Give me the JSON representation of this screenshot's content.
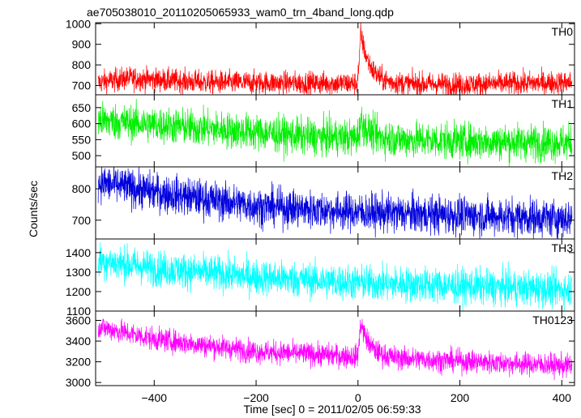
{
  "chart_data": {
    "type": "line",
    "title": "ae705038010_20110205065933_wam0_trn_4band_long.qdp",
    "xlabel": "Time [sec] 0 = 2011/02/05 06:59:33",
    "ylabel": "Counts/sec",
    "xlim": [
      -515,
      425
    ],
    "xticks": [
      -400,
      -200,
      0,
      200,
      400
    ],
    "panels": [
      {
        "name": "TH0",
        "color": "#ff0000",
        "ylim": [
          655,
          1005
        ],
        "yticks": [
          700,
          800,
          900,
          1000
        ],
        "baseline": [
          [
            -510,
            715
          ],
          [
            -450,
            735
          ],
          [
            -300,
            715
          ],
          [
            0,
            710
          ],
          [
            200,
            705
          ],
          [
            420,
            715
          ]
        ],
        "noise": 28,
        "peak": {
          "t": 5,
          "height": 250,
          "width": 18
        }
      },
      {
        "name": "TH1",
        "color": "#00ee00",
        "ylim": [
          465,
          690
        ],
        "yticks": [
          500,
          550,
          600,
          650
        ],
        "baseline": [
          [
            -510,
            610
          ],
          [
            -300,
            585
          ],
          [
            -100,
            560
          ],
          [
            200,
            545
          ],
          [
            420,
            540
          ]
        ],
        "noise": 28,
        "peak": {
          "t": 5,
          "height": 55,
          "width": 18
        }
      },
      {
        "name": "TH2",
        "color": "#0000dd",
        "ylim": [
          640,
          870
        ],
        "yticks": [
          700,
          800
        ],
        "baseline": [
          [
            -510,
            820
          ],
          [
            -400,
            790
          ],
          [
            -200,
            745
          ],
          [
            0,
            725
          ],
          [
            420,
            705
          ]
        ],
        "noise": 30,
        "peak": null
      },
      {
        "name": "TH3",
        "color": "#00ffff",
        "ylim": [
          1100,
          1470
        ],
        "yticks": [
          1100,
          1200,
          1300,
          1400
        ],
        "baseline": [
          [
            -510,
            1360
          ],
          [
            -400,
            1320
          ],
          [
            -200,
            1275
          ],
          [
            0,
            1245
          ],
          [
            420,
            1210
          ]
        ],
        "noise": 45,
        "peak": null
      },
      {
        "name": "TH0123",
        "color": "#ff00ff",
        "ylim": [
          2970,
          3690
        ],
        "yticks": [
          3000,
          3200,
          3400,
          3600
        ],
        "baseline": [
          [
            -510,
            3540
          ],
          [
            -400,
            3420
          ],
          [
            -200,
            3300
          ],
          [
            0,
            3250
          ],
          [
            420,
            3160
          ]
        ],
        "noise": 55,
        "peak": {
          "t": 5,
          "height": 340,
          "width": 18
        }
      }
    ]
  }
}
